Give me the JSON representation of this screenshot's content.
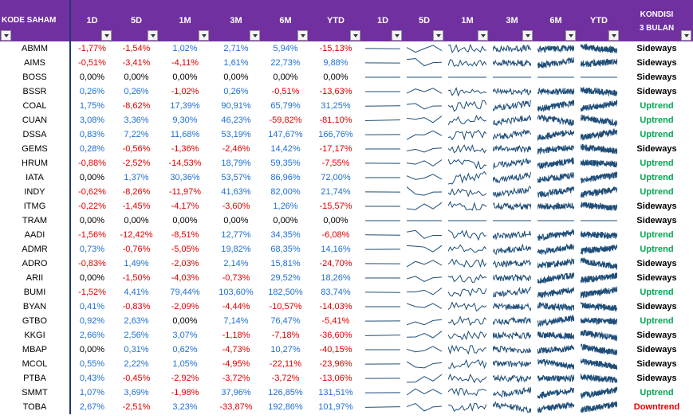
{
  "header": {
    "code_label": "KODE SAHAM",
    "perf_labels": [
      "1D",
      "5D",
      "1M",
      "3M",
      "6M",
      "YTD"
    ],
    "spark_labels": [
      "1D",
      "5D",
      "1M",
      "3M",
      "6M",
      "YTD"
    ],
    "kondisi_line1": "KONDISI",
    "kondisi_line2": "3 BULAN"
  },
  "colors": {
    "header_bg": "#7030a0",
    "positive": "#1f6fd1",
    "negative": "#e00000",
    "uptrend": "#00a651",
    "downtrend": "#e00000",
    "sparkline": "#1f4e79"
  },
  "rows": [
    {
      "code": "ABMM",
      "v": [
        "-1,77%",
        "-1,54%",
        "1,02%",
        "2,71%",
        "5,94%",
        "-15,13%"
      ],
      "k": "Sideways"
    },
    {
      "code": "AIMS",
      "v": [
        "-0,51%",
        "-3,41%",
        "-4,11%",
        "1,61%",
        "22,73%",
        "9,88%"
      ],
      "k": "Sideways"
    },
    {
      "code": "BOSS",
      "v": [
        "0,00%",
        "0,00%",
        "0,00%",
        "0,00%",
        "0,00%",
        "0,00%"
      ],
      "k": "Sideways"
    },
    {
      "code": "BSSR",
      "v": [
        "0,26%",
        "0,26%",
        "-1,02%",
        "0,26%",
        "-0,51%",
        "-13,63%"
      ],
      "k": "Sideways"
    },
    {
      "code": "COAL",
      "v": [
        "1,75%",
        "-8,62%",
        "17,39%",
        "90,91%",
        "65,79%",
        "31,25%"
      ],
      "k": "Uptrend"
    },
    {
      "code": "CUAN",
      "v": [
        "3,08%",
        "3,36%",
        "9,30%",
        "46,23%",
        "-59,82%",
        "-81,10%"
      ],
      "k": "Uptrend"
    },
    {
      "code": "DSSA",
      "v": [
        "0,83%",
        "7,22%",
        "11,68%",
        "53,19%",
        "147,67%",
        "166,76%"
      ],
      "k": "Uptrend"
    },
    {
      "code": "GEMS",
      "v": [
        "0,28%",
        "-0,56%",
        "-1,36%",
        "-2,46%",
        "14,42%",
        "-17,17%"
      ],
      "k": "Sideways"
    },
    {
      "code": "HRUM",
      "v": [
        "-0,88%",
        "-2,52%",
        "-14,53%",
        "18,79%",
        "59,35%",
        "-7,55%"
      ],
      "k": "Uptrend"
    },
    {
      "code": "IATA",
      "v": [
        "0,00%",
        "1,37%",
        "30,36%",
        "53,57%",
        "86,96%",
        "72,00%"
      ],
      "k": "Uptrend"
    },
    {
      "code": "INDY",
      "v": [
        "-0,62%",
        "-8,26%",
        "-11,97%",
        "41,63%",
        "82,00%",
        "21,74%"
      ],
      "k": "Uptrend"
    },
    {
      "code": "ITMG",
      "v": [
        "-0,22%",
        "-1,45%",
        "-4,17%",
        "-3,60%",
        "1,26%",
        "-15,57%"
      ],
      "k": "Sideways"
    },
    {
      "code": "TRAM",
      "v": [
        "0,00%",
        "0,00%",
        "0,00%",
        "0,00%",
        "0,00%",
        "0,00%"
      ],
      "k": "Sideways"
    },
    {
      "code": "AADI",
      "v": [
        "-1,56%",
        "-12,42%",
        "-8,51%",
        "12,77%",
        "34,35%",
        "-6,08%"
      ],
      "k": "Uptrend"
    },
    {
      "code": "ADMR",
      "v": [
        "0,73%",
        "-0,76%",
        "-5,05%",
        "19,82%",
        "68,35%",
        "14,16%"
      ],
      "k": "Uptrend"
    },
    {
      "code": "ADRO",
      "v": [
        "-0,83%",
        "1,49%",
        "-2,03%",
        "2,14%",
        "15,81%",
        "-24,70%"
      ],
      "k": "Sideways"
    },
    {
      "code": "ARII",
      "v": [
        "0,00%",
        "-1,50%",
        "-4,03%",
        "-0,73%",
        "29,52%",
        "18,26%"
      ],
      "k": "Sideways"
    },
    {
      "code": "BUMI",
      "v": [
        "-1,52%",
        "4,41%",
        "79,44%",
        "103,60%",
        "182,50%",
        "83,74%"
      ],
      "k": "Uptrend"
    },
    {
      "code": "BYAN",
      "v": [
        "0,41%",
        "-0,83%",
        "-2,09%",
        "-4,44%",
        "-10,57%",
        "-14,03%"
      ],
      "k": "Sideways"
    },
    {
      "code": "GTBO",
      "v": [
        "0,92%",
        "2,63%",
        "0,00%",
        "7,14%",
        "76,47%",
        "-5,41%"
      ],
      "k": "Uptrend"
    },
    {
      "code": "KKGI",
      "v": [
        "2,66%",
        "2,56%",
        "3,07%",
        "-1,18%",
        "-7,18%",
        "-36,60%"
      ],
      "k": "Sideways"
    },
    {
      "code": "MBAP",
      "v": [
        "0,00%",
        "0,31%",
        "0,62%",
        "-4,73%",
        "10,27%",
        "-40,15%"
      ],
      "k": "Sideways"
    },
    {
      "code": "MCOL",
      "v": [
        "0,55%",
        "2,22%",
        "1,05%",
        "-4,95%",
        "-22,11%",
        "-23,96%"
      ],
      "k": "Sideways"
    },
    {
      "code": "PTBA",
      "v": [
        "0,43%",
        "-0,45%",
        "-2,92%",
        "-3,72%",
        "-3,72%",
        "-13,06%"
      ],
      "k": "Sideways"
    },
    {
      "code": "SMMT",
      "v": [
        "1,07%",
        "3,69%",
        "-1,98%",
        "37,96%",
        "126,85%",
        "131,51%"
      ],
      "k": "Uptrend"
    },
    {
      "code": "TOBA",
      "v": [
        "2,67%",
        "-2,51%",
        "3,23%",
        "-33,87%",
        "192,86%",
        "101,97%"
      ],
      "k": "Downtrend"
    }
  ]
}
